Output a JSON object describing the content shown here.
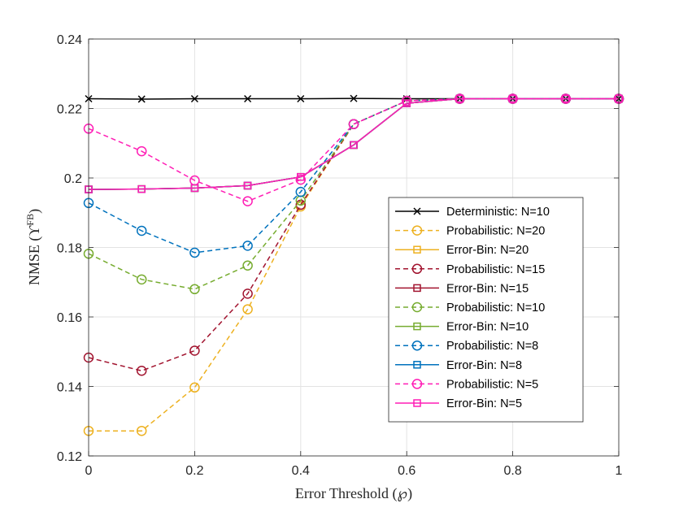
{
  "chart_data": {
    "type": "line",
    "title": "",
    "xlabel": "Error Threshold (℘)",
    "ylabel": "NMSE (ϒ",
    "ylabel_sup": "FB",
    "ylabel_close": ")",
    "xlim": [
      0,
      1
    ],
    "ylim": [
      0.12,
      0.24
    ],
    "xticks": [
      0,
      0.2,
      0.4,
      0.6,
      0.8,
      1
    ],
    "xtick_labels": [
      "0",
      "0.2",
      "0.4",
      "0.6",
      "0.8",
      "1"
    ],
    "yticks": [
      0.12,
      0.14,
      0.16,
      0.18,
      0.2,
      0.22,
      0.24
    ],
    "ytick_labels": [
      "0.12",
      "0.14",
      "0.16",
      "0.18",
      "0.2",
      "0.22",
      "0.24"
    ],
    "grid": true,
    "legend_position": "center-right",
    "x": [
      0,
      0.1,
      0.2,
      0.3,
      0.4,
      0.5,
      0.6,
      0.7,
      0.8,
      0.9,
      1
    ],
    "series": [
      {
        "name": "Deterministic: N=10",
        "color": "#000000",
        "dash": "solid",
        "marker": "x",
        "values": [
          0.2228,
          0.2227,
          0.2228,
          0.2228,
          0.2228,
          0.2229,
          0.2228,
          0.2228,
          0.2228,
          0.2228,
          0.2228
        ]
      },
      {
        "name": "Probabilistic: N=20",
        "color": "#EDB120",
        "dash": "dashed",
        "marker": "circle",
        "values": [
          0.1272,
          0.1272,
          0.1397,
          0.1622,
          0.1918,
          0.2155,
          0.2222,
          0.2228,
          0.2228,
          0.2228,
          0.2228
        ]
      },
      {
        "name": "Error-Bin: N=20",
        "color": "#EDB120",
        "dash": "solid",
        "marker": "square",
        "values": [
          0.1967,
          0.1968,
          0.1971,
          0.1978,
          0.2003,
          0.2095,
          0.2215,
          0.2228,
          0.2228,
          0.2228,
          0.2228
        ]
      },
      {
        "name": "Probabilistic: N=15",
        "color": "#A2142F",
        "dash": "dashed",
        "marker": "circle",
        "values": [
          0.1483,
          0.1445,
          0.1503,
          0.1667,
          0.1923,
          0.2155,
          0.2222,
          0.2228,
          0.2228,
          0.2228,
          0.2228
        ]
      },
      {
        "name": "Error-Bin: N=15",
        "color": "#A2142F",
        "dash": "solid",
        "marker": "square",
        "values": [
          0.1967,
          0.1968,
          0.1971,
          0.1978,
          0.2003,
          0.2095,
          0.2215,
          0.2228,
          0.2228,
          0.2228,
          0.2228
        ]
      },
      {
        "name": "Probabilistic: N=10",
        "color": "#77AC30",
        "dash": "dashed",
        "marker": "circle",
        "values": [
          0.1782,
          0.1708,
          0.168,
          0.1748,
          0.1935,
          0.2155,
          0.2222,
          0.2228,
          0.2228,
          0.2228,
          0.2228
        ]
      },
      {
        "name": "Error-Bin: N=10",
        "color": "#77AC30",
        "dash": "solid",
        "marker": "square",
        "values": [
          0.1967,
          0.1968,
          0.1971,
          0.1978,
          0.2003,
          0.2095,
          0.2215,
          0.2228,
          0.2228,
          0.2228,
          0.2228
        ]
      },
      {
        "name": "Probabilistic: N=8",
        "color": "#0072BD",
        "dash": "dashed",
        "marker": "circle",
        "values": [
          0.1928,
          0.1848,
          0.1785,
          0.1805,
          0.196,
          0.2155,
          0.2222,
          0.2228,
          0.2228,
          0.2228,
          0.2228
        ]
      },
      {
        "name": "Error-Bin: N=8",
        "color": "#0072BD",
        "dash": "solid",
        "marker": "square",
        "values": [
          0.1967,
          0.1968,
          0.1971,
          0.1978,
          0.2003,
          0.2095,
          0.2215,
          0.2228,
          0.2228,
          0.2228,
          0.2228
        ]
      },
      {
        "name": "Probabilistic: N=5",
        "color": "#FF1DB5",
        "dash": "dashed",
        "marker": "circle",
        "values": [
          0.2142,
          0.2077,
          0.1993,
          0.1933,
          0.1995,
          0.2155,
          0.2222,
          0.2228,
          0.2228,
          0.2228,
          0.2228
        ]
      },
      {
        "name": "Error-Bin: N=5",
        "color": "#FF1DB5",
        "dash": "solid",
        "marker": "square",
        "values": [
          0.1967,
          0.1968,
          0.1971,
          0.1978,
          0.2003,
          0.2095,
          0.2215,
          0.2228,
          0.2228,
          0.2228,
          0.2228
        ]
      }
    ]
  }
}
